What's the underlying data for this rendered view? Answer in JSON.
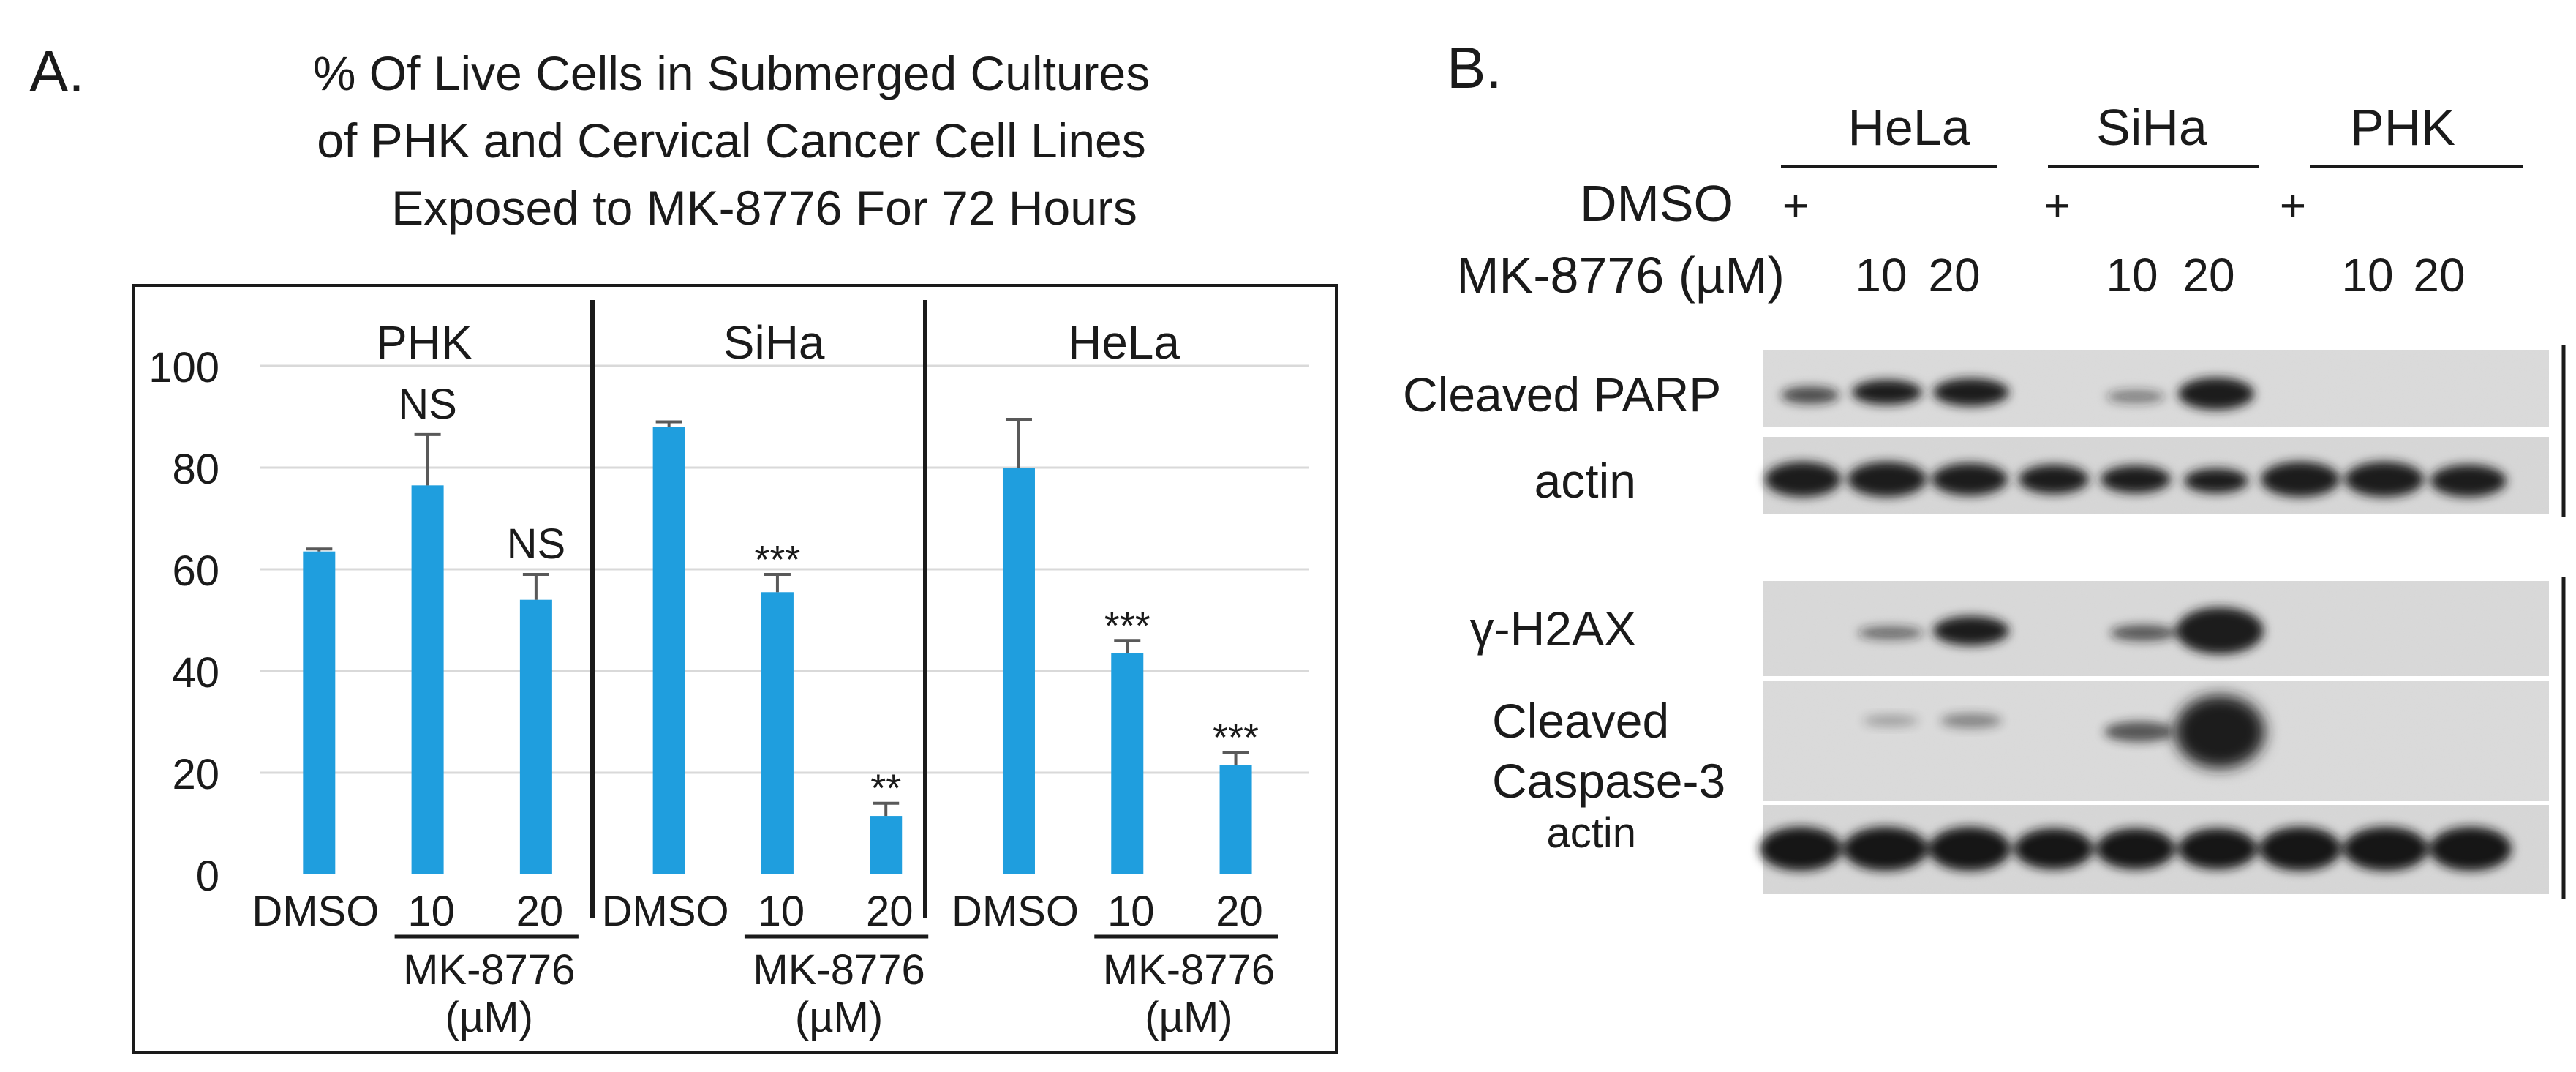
{
  "panel_a": {
    "label": "A.",
    "title_lines": [
      "% Of Live Cells in Submerged Cultures",
      "of PHK and Cervical Cancer Cell Lines",
      "Exposed to MK-8776 For 72 Hours"
    ]
  },
  "chart_data": {
    "type": "bar",
    "title": "% Of Live Cells in Submerged Cultures of PHK and Cervical Cancer Cell Lines Exposed to MK-8776 For 72 Hours",
    "ylim": [
      0,
      100
    ],
    "yticks": [
      0,
      20,
      40,
      60,
      80,
      100
    ],
    "grid": true,
    "bar_color": "#1f9ede",
    "groups": [
      {
        "name": "PHK",
        "categories": [
          "DMSO",
          "10",
          "20"
        ],
        "values": [
          63.5,
          76.5,
          54
        ],
        "errors": [
          0.5,
          10,
          5
        ],
        "annotations": [
          "",
          "NS",
          "NS"
        ],
        "treatment_label": "MK-8776",
        "unit_label": "(µM)"
      },
      {
        "name": "SiHa",
        "categories": [
          "DMSO",
          "10",
          "20"
        ],
        "values": [
          88,
          55.5,
          11.5
        ],
        "errors": [
          1,
          3.5,
          2.5
        ],
        "annotations": [
          "",
          "***",
          "**"
        ],
        "treatment_label": "MK-8776",
        "unit_label": "(µM)"
      },
      {
        "name": "HeLa",
        "categories": [
          "DMSO",
          "10",
          "20"
        ],
        "values": [
          80,
          43.5,
          21.5
        ],
        "errors": [
          9.5,
          2.5,
          2.5
        ],
        "annotations": [
          "",
          "***",
          "***"
        ],
        "treatment_label": "MK-8776",
        "unit_label": "(µM)"
      }
    ]
  },
  "panel_b": {
    "label": "B.",
    "cell_lines": [
      "HeLa",
      "SiHa",
      "PHK"
    ],
    "dmso_label": "DMSO",
    "dmso_mark": "+",
    "treatment_label": "MK-8776 (µM)",
    "doses": [
      "10",
      "20"
    ],
    "blots": [
      {
        "label_lines": [
          "Cleaved PARP"
        ]
      },
      {
        "label_lines": [
          "actin"
        ]
      },
      {
        "label_lines": [
          "γ-H2AX"
        ]
      },
      {
        "label_lines": [
          "Cleaved",
          "Caspase-3"
        ]
      },
      {
        "label_lines": [
          "actin"
        ]
      }
    ]
  }
}
